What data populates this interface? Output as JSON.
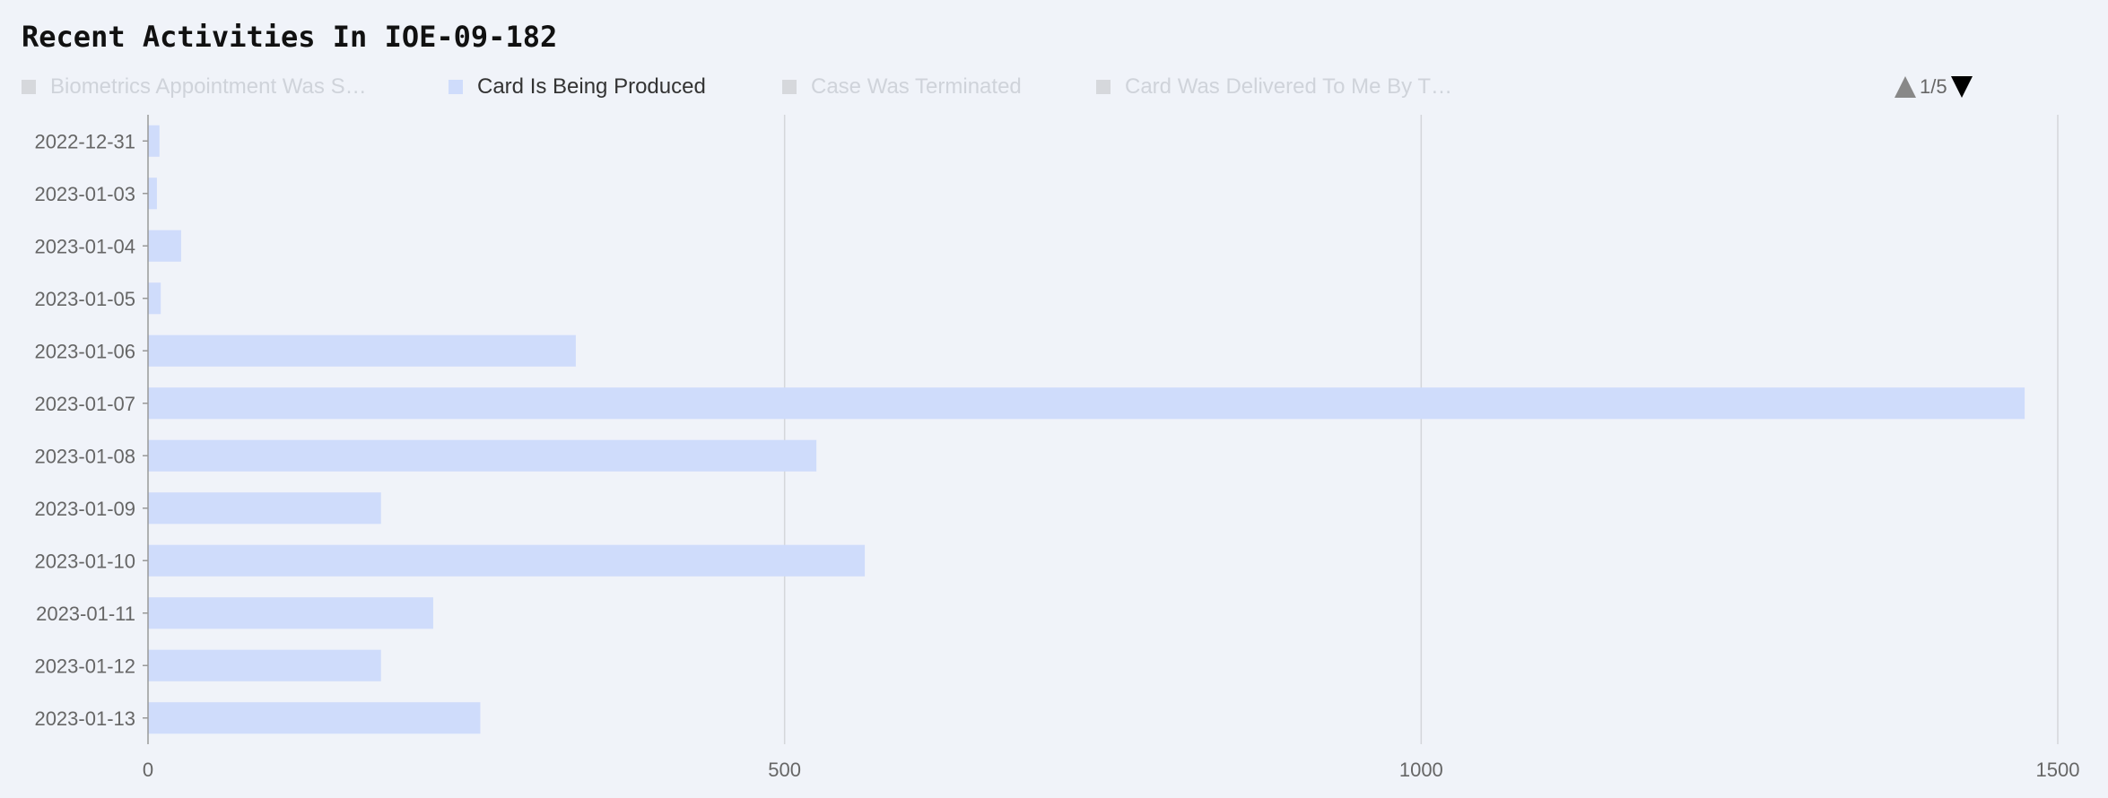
{
  "title": "Recent Activities In IOE-09-182",
  "legend": {
    "items": [
      {
        "label": "Biometrics Appointment Was S…",
        "active": false
      },
      {
        "label": "Card Is Being Produced",
        "active": true
      },
      {
        "label": "Case Was Terminated",
        "active": false
      },
      {
        "label": "Card Was Delivered To Me By T…",
        "active": false
      }
    ],
    "page": "1/5"
  },
  "colors": {
    "bar": "#cfdcfb",
    "grid": "#d4d6da",
    "axis": "#999999",
    "background": "#f0f3f9"
  },
  "chart_data": {
    "type": "bar",
    "orientation": "horizontal",
    "categories": [
      "2022-12-31",
      "2023-01-03",
      "2023-01-04",
      "2023-01-05",
      "2023-01-06",
      "2023-01-07",
      "2023-01-08",
      "2023-01-09",
      "2023-01-10",
      "2023-01-11",
      "2023-01-12",
      "2023-01-13"
    ],
    "series": [
      {
        "name": "Card Is Being Produced",
        "values": [
          9,
          7,
          26,
          10,
          336,
          1474,
          525,
          183,
          563,
          224,
          183,
          261
        ]
      }
    ],
    "xlim": [
      0,
      1500
    ],
    "xticks": [
      "0",
      "500",
      "1000",
      "1500"
    ],
    "grid": true,
    "legend_position": "top"
  }
}
